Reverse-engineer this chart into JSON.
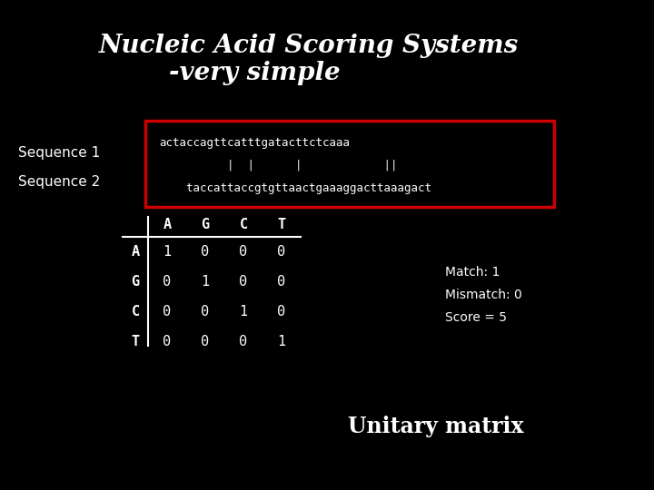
{
  "title_line1": "Nucleic Acid Scoring Systems",
  "title_line2": "-very simple",
  "bg_color": "#000000",
  "text_color": "#ffffff",
  "seq1_label": "Sequence 1",
  "seq2_label": "Sequence 2",
  "seq1": "actaccagttcatttgatacttctcaaa",
  "pipes": "          |  |      |            ||",
  "seq2": "    taccattaccgtgttaactgaaaggacttaaagact",
  "matrix_row_labels": [
    "A",
    "G",
    "C",
    "T"
  ],
  "matrix_col_labels": [
    "A",
    "G",
    "C",
    "T"
  ],
  "matrix_data": [
    [
      1,
      0,
      0,
      0
    ],
    [
      0,
      1,
      0,
      0
    ],
    [
      0,
      0,
      1,
      0
    ],
    [
      0,
      0,
      0,
      1
    ]
  ],
  "match_text": "Match: 1",
  "mismatch_text": "Mismatch: 0",
  "score_text": "Score = 5",
  "unitary_text": "Unitary matrix",
  "red_box_color": "#cc0000",
  "title_fontsize": 20,
  "seq_label_fontsize": 11,
  "seq_text_fontsize": 9,
  "matrix_label_fontsize": 11,
  "matrix_val_fontsize": 11,
  "match_fontsize": 10,
  "unitary_fontsize": 17
}
